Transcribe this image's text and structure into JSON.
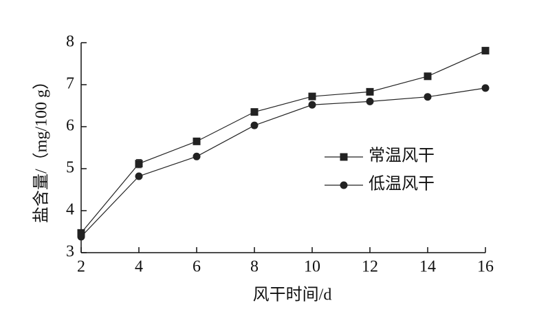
{
  "chart_data": {
    "type": "line",
    "xlabel": "风干时间/d",
    "ylabel": "盐含量/（mg/100 g）",
    "x": [
      2,
      4,
      6,
      8,
      10,
      12,
      14,
      16
    ],
    "series": [
      {
        "name": "常温风干",
        "color": "#222222",
        "marker": "square",
        "values": [
          3.47,
          5.12,
          5.65,
          6.35,
          6.72,
          6.83,
          7.2,
          7.81
        ],
        "errors": [
          0.05,
          0.1,
          0.05,
          0.05,
          0.05,
          0.04,
          0.05,
          0.05
        ]
      },
      {
        "name": "低温风干",
        "color": "#222222",
        "marker": "circle",
        "values": [
          3.38,
          4.82,
          5.29,
          6.03,
          6.52,
          6.6,
          6.71,
          6.92
        ],
        "errors": [
          0.06,
          0.05,
          0.04,
          0.06,
          0.04,
          0.04,
          0.04,
          0.05
        ]
      }
    ],
    "xlim": [
      2,
      16
    ],
    "xticks": [
      2,
      4,
      6,
      8,
      10,
      12,
      14,
      16
    ],
    "ylim": [
      3,
      8
    ],
    "yticks": [
      3,
      4,
      5,
      6,
      7,
      8
    ],
    "legend": "right"
  }
}
